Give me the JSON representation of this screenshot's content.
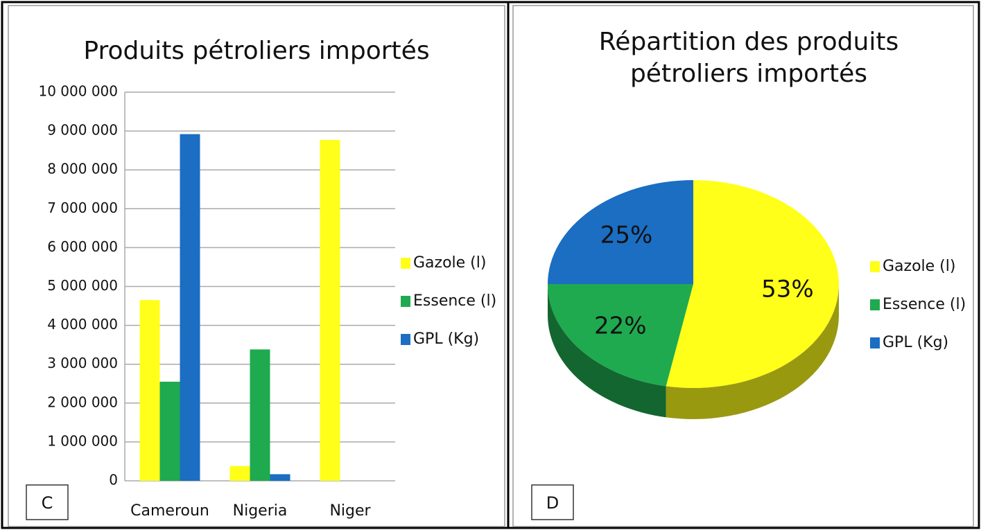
{
  "chart_data": [
    {
      "type": "bar",
      "title": "Produits pétroliers importés",
      "annotation": "C",
      "categories": [
        "Cameroun",
        "Nigeria",
        "Niger"
      ],
      "series": [
        {
          "name": "Gazole (l)",
          "color": "#ffff1a",
          "values": [
            4650000,
            380000,
            8770000
          ]
        },
        {
          "name": "Essence (l)",
          "color": "#1faa4f",
          "values": [
            2550000,
            3380000,
            0
          ]
        },
        {
          "name": "GPL (Kg)",
          "color": "#1b6ec2",
          "values": [
            8920000,
            170000,
            0
          ]
        }
      ],
      "ylim": [
        0,
        10000000
      ],
      "yticks": [
        0,
        {
          "value": 1000000,
          "label": "1 000 000"
        },
        {
          "value": 2000000,
          "label": "2 000 000"
        },
        {
          "value": 3000000,
          "label": "3 000 000"
        },
        {
          "value": 4000000,
          "label": "4 000 000"
        },
        {
          "value": 5000000,
          "label": "5 000 000"
        },
        {
          "value": 6000000,
          "label": "6 000 000"
        },
        {
          "value": 7000000,
          "label": "7 000 000"
        },
        {
          "value": 8000000,
          "label": "8 000 000"
        },
        {
          "value": 9000000,
          "label": "9 000 000"
        },
        {
          "value": 10000000,
          "label": "10 000 000"
        }
      ],
      "grid": true,
      "legend": "right"
    },
    {
      "type": "pie",
      "title": "Répartition des produits pétroliers importés",
      "annotation": "D",
      "categories": [
        "Gazole (l)",
        "Essence (l)",
        "GPL (Kg)"
      ],
      "values": [
        53,
        22,
        25
      ],
      "value_labels": [
        "53%",
        "22%",
        "25%"
      ],
      "colors": [
        "#ffff1a",
        "#1faa4f",
        "#1b6ec2"
      ],
      "legend": "right"
    }
  ]
}
